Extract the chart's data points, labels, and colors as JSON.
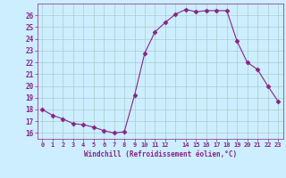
{
  "x": [
    0,
    1,
    2,
    3,
    4,
    5,
    6,
    7,
    8,
    9,
    10,
    11,
    12,
    13,
    14,
    15,
    16,
    17,
    18,
    19,
    20,
    21,
    22,
    23
  ],
  "y": [
    18.0,
    17.5,
    17.2,
    16.8,
    16.7,
    16.5,
    16.2,
    16.0,
    16.1,
    19.2,
    22.8,
    24.6,
    25.4,
    26.1,
    26.5,
    26.3,
    26.4,
    26.4,
    26.4,
    23.8,
    22.0,
    21.4,
    20.0,
    18.7
  ],
  "line_color": "#882288",
  "marker": "D",
  "marker_size": 2.5,
  "bg_color": "#cceeff",
  "grid_color": "#aacccc",
  "xlabel": "Windchill (Refroidissement éolien,°C)",
  "xlabel_color": "#882288",
  "tick_color": "#882288",
  "ylim": [
    15.5,
    27.0
  ],
  "xlim": [
    -0.5,
    23.5
  ],
  "yticks": [
    16,
    17,
    18,
    19,
    20,
    21,
    22,
    23,
    24,
    25,
    26
  ],
  "xticks": [
    0,
    1,
    2,
    3,
    4,
    5,
    6,
    7,
    8,
    9,
    10,
    11,
    12,
    13,
    14,
    15,
    16,
    17,
    18,
    19,
    20,
    21,
    22,
    23
  ],
  "xtick_labels": [
    "0",
    "1",
    "2",
    "3",
    "4",
    "5",
    "6",
    "7",
    "8",
    "9",
    "10",
    "11",
    "12",
    "",
    "14",
    "15",
    "16",
    "17",
    "18",
    "19",
    "20",
    "21",
    "22",
    "23"
  ]
}
